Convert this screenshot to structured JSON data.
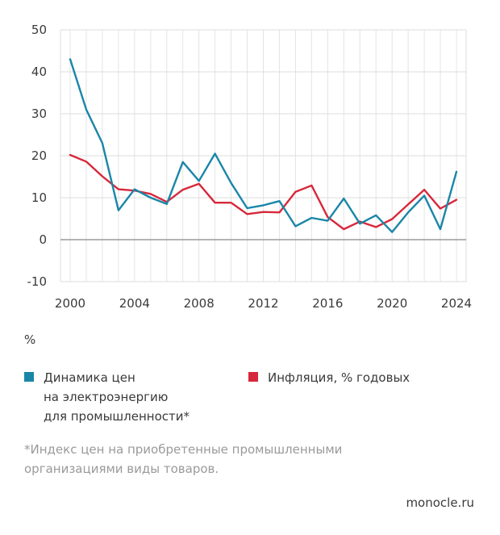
{
  "chart_data": {
    "type": "line",
    "x": [
      2000,
      2001,
      2002,
      2003,
      2004,
      2005,
      2006,
      2007,
      2008,
      2009,
      2010,
      2011,
      2012,
      2013,
      2014,
      2015,
      2016,
      2017,
      2018,
      2019,
      2020,
      2021,
      2022,
      2023,
      2024
    ],
    "series": [
      {
        "name": "Динамика цен\nна электроэнергию\nдля промышленности*",
        "color": "#1a86a8",
        "values": [
          43,
          31,
          23,
          7,
          12,
          10,
          8.5,
          18.5,
          14,
          20.5,
          13.5,
          7.5,
          8.2,
          9.2,
          3.2,
          5.2,
          4.5,
          9.8,
          3.8,
          5.8,
          1.8,
          6.5,
          10.5,
          2.5,
          16.2
        ]
      },
      {
        "name": "Инфляция, % годовых",
        "color": "#d7283b",
        "values": [
          20.2,
          18.6,
          15.1,
          12,
          11.7,
          10.9,
          9,
          11.9,
          13.3,
          8.8,
          8.8,
          6.1,
          6.6,
          6.5,
          11.4,
          12.9,
          5.4,
          2.5,
          4.3,
          3,
          4.9,
          8.4,
          11.9,
          7.4,
          9.5
        ]
      }
    ],
    "y_ticks": [
      "50",
      "40",
      "30",
      "20",
      "10",
      "0",
      "-10"
    ],
    "x_ticks": [
      "2000",
      "2004",
      "2008",
      "2012",
      "2016",
      "2020",
      "2024"
    ],
    "x_tick_values": [
      2000,
      2004,
      2008,
      2012,
      2016,
      2020,
      2024
    ],
    "y_tick_values": [
      50,
      40,
      30,
      20,
      10,
      0,
      -10
    ],
    "ylim": [
      -10,
      50
    ],
    "xlim": [
      2000,
      2024
    ],
    "grid": true,
    "ylabel": "%",
    "legend_position": "bottom"
  },
  "unit_label": "%",
  "footnote": "*Индекс цен на приобретенные промышленными\nорганизациями виды товаров.",
  "source": "monocle.ru"
}
